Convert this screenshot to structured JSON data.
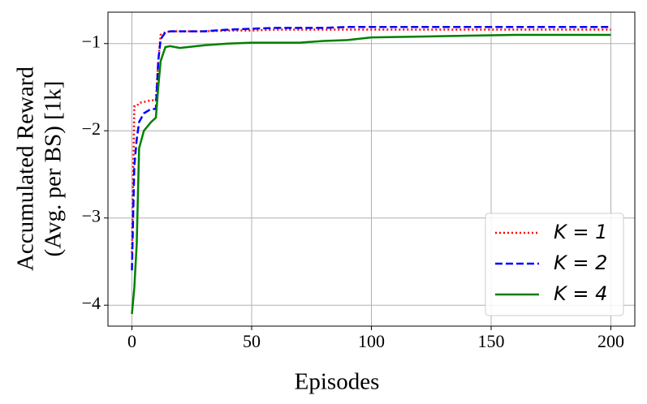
{
  "chart_data": {
    "type": "line",
    "xlabel": "Episodes",
    "ylabel": [
      "Accumulated Reward",
      "(Avg. per BS) [1k]"
    ],
    "x": [
      0,
      1,
      2,
      3,
      5,
      8,
      10,
      11,
      12,
      14,
      16,
      20,
      30,
      40,
      50,
      60,
      70,
      80,
      90,
      100,
      120,
      140,
      160,
      180,
      200
    ],
    "series": [
      {
        "name": "K = 1",
        "color": "#ff0000",
        "dash": "dotted",
        "values": [
          -3.4,
          -1.72,
          -1.72,
          -1.68,
          -1.67,
          -1.65,
          -1.65,
          -1.2,
          -0.9,
          -0.87,
          -0.86,
          -0.86,
          -0.86,
          -0.85,
          -0.85,
          -0.84,
          -0.84,
          -0.84,
          -0.84,
          -0.84,
          -0.84,
          -0.84,
          -0.84,
          -0.84,
          -0.84
        ]
      },
      {
        "name": "K = 2",
        "color": "#0000ff",
        "dash": "dashed",
        "values": [
          -3.6,
          -2.4,
          -2.1,
          -1.9,
          -1.8,
          -1.75,
          -1.75,
          -1.2,
          -0.95,
          -0.87,
          -0.86,
          -0.86,
          -0.86,
          -0.84,
          -0.83,
          -0.82,
          -0.82,
          -0.82,
          -0.81,
          -0.81,
          -0.81,
          -0.81,
          -0.81,
          -0.81,
          -0.81
        ]
      },
      {
        "name": "K = 4",
        "color": "#008000",
        "dash": "solid",
        "values": [
          -4.1,
          -3.8,
          -3.3,
          -2.2,
          -2.0,
          -1.9,
          -1.85,
          -1.5,
          -1.2,
          -1.04,
          -1.03,
          -1.05,
          -1.02,
          -1.0,
          -0.99,
          -0.99,
          -0.99,
          -0.97,
          -0.96,
          -0.93,
          -0.92,
          -0.91,
          -0.9,
          -0.9,
          -0.9
        ]
      }
    ],
    "xlim": [
      -10,
      210
    ],
    "ylim": [
      -4.24,
      -0.64
    ],
    "xticks": [
      0,
      50,
      100,
      150,
      200
    ],
    "yticks": [
      {
        "value": -1,
        "label": "−1"
      },
      {
        "value": -2,
        "label": "−2"
      },
      {
        "value": -3,
        "label": "−3"
      },
      {
        "value": -4,
        "label": "−4"
      }
    ],
    "grid": true,
    "legend": "lower right"
  }
}
